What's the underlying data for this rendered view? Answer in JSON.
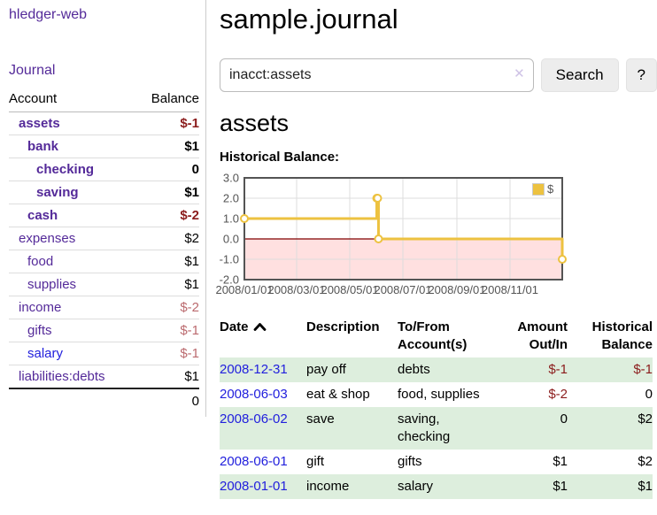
{
  "app": {
    "brand": "hledger-web"
  },
  "sidebar": {
    "journal_link": "Journal",
    "accounts": {
      "headers": [
        "Account",
        "Balance"
      ],
      "rows": [
        {
          "account": "assets",
          "balance": "$-1",
          "depth": 1,
          "matched": true,
          "neg": "strong"
        },
        {
          "account": "bank",
          "balance": "$1",
          "depth": 2,
          "matched": true
        },
        {
          "account": "checking",
          "balance": "0",
          "depth": 3,
          "matched": true
        },
        {
          "account": "saving",
          "balance": "$1",
          "depth": 3,
          "matched": true
        },
        {
          "account": "cash",
          "balance": "$-2",
          "depth": 2,
          "matched": true,
          "neg": "strong"
        },
        {
          "account": "expenses",
          "balance": "$2",
          "depth": 1
        },
        {
          "account": "food",
          "balance": "$1",
          "depth": 2
        },
        {
          "account": "supplies",
          "balance": "$1",
          "depth": 2
        },
        {
          "account": "income",
          "balance": "$-2",
          "depth": 1,
          "neg": "soft"
        },
        {
          "account": "gifts",
          "balance": "$-1",
          "depth": 2,
          "neg": "soft"
        },
        {
          "account": "salary",
          "balance": "$-1",
          "depth": 2,
          "neg": "soft",
          "unvisited": true
        },
        {
          "account": "liabilities:debts",
          "balance": "$1",
          "depth": 1
        }
      ],
      "total": "0"
    }
  },
  "main": {
    "title": "sample.journal",
    "search": {
      "value": "inacct:assets",
      "button_label": "Search",
      "help_label": "?",
      "clear_icon": "✕"
    },
    "account_heading": "assets",
    "chart_label": "Historical Balance:"
  },
  "chart_data": {
    "type": "line",
    "step": true,
    "title": "Historical Balance",
    "series": [
      {
        "name": "$",
        "color": "#edc240",
        "points": [
          {
            "date": "2008-01-01",
            "value": 1
          },
          {
            "date": "2008-06-01",
            "value": 2
          },
          {
            "date": "2008-06-02",
            "value": 2
          },
          {
            "date": "2008-06-03",
            "value": 0
          },
          {
            "date": "2008-12-31",
            "value": -1
          }
        ]
      }
    ],
    "xlim_dates": [
      "2008-01-01",
      "2008-12-31"
    ],
    "ylim": [
      -2,
      3
    ],
    "y_ticks": [
      "3.0",
      "2.0",
      "1.0",
      "0.0",
      "-1.0",
      "-2.0"
    ],
    "x_ticks": [
      "2008/01/01",
      "2008/03/01",
      "2008/05/01",
      "2008/07/01",
      "2008/09/01",
      "2008/11/01"
    ],
    "grid": true,
    "legend_position": "top-right",
    "grid_color": "#dddddd",
    "border_color": "#545454",
    "zero_line_color": "#800000",
    "negative_region_fill": "rgba(255,0,0,0.12)"
  },
  "register": {
    "headers": {
      "date": "Date",
      "description": "Description",
      "accounts": "To/From Account(s)",
      "amount": "Amount Out/In",
      "balance": "Historical Balance"
    },
    "rows": [
      {
        "date": "2008-12-31",
        "description": "pay off",
        "accounts": "debts",
        "amount": "$-1",
        "amount_neg": true,
        "balance": "$-1",
        "balance_neg": true
      },
      {
        "date": "2008-06-03",
        "description": "eat & shop",
        "accounts": "food, supplies",
        "amount": "$-2",
        "amount_neg": true,
        "balance": "0"
      },
      {
        "date": "2008-06-02",
        "description": "save",
        "accounts": "saving, checking",
        "amount": "0",
        "balance": "$2"
      },
      {
        "date": "2008-06-01",
        "description": "gift",
        "accounts": "gifts",
        "amount": "$1",
        "balance": "$2"
      },
      {
        "date": "2008-01-01",
        "description": "income",
        "accounts": "salary",
        "amount": "$1",
        "balance": "$1"
      }
    ]
  },
  "colors": {
    "link_purple": "#542a99",
    "link_blue": "#2220dd",
    "negative_strong": "#8b1c1c",
    "negative_soft": "#bb6a6e",
    "row_stripe_green": "#ddeedd",
    "chart_line_gold": "#edc240"
  },
  "icons": {
    "sort_ascending": "chevron-up",
    "clear_search": "✕"
  }
}
